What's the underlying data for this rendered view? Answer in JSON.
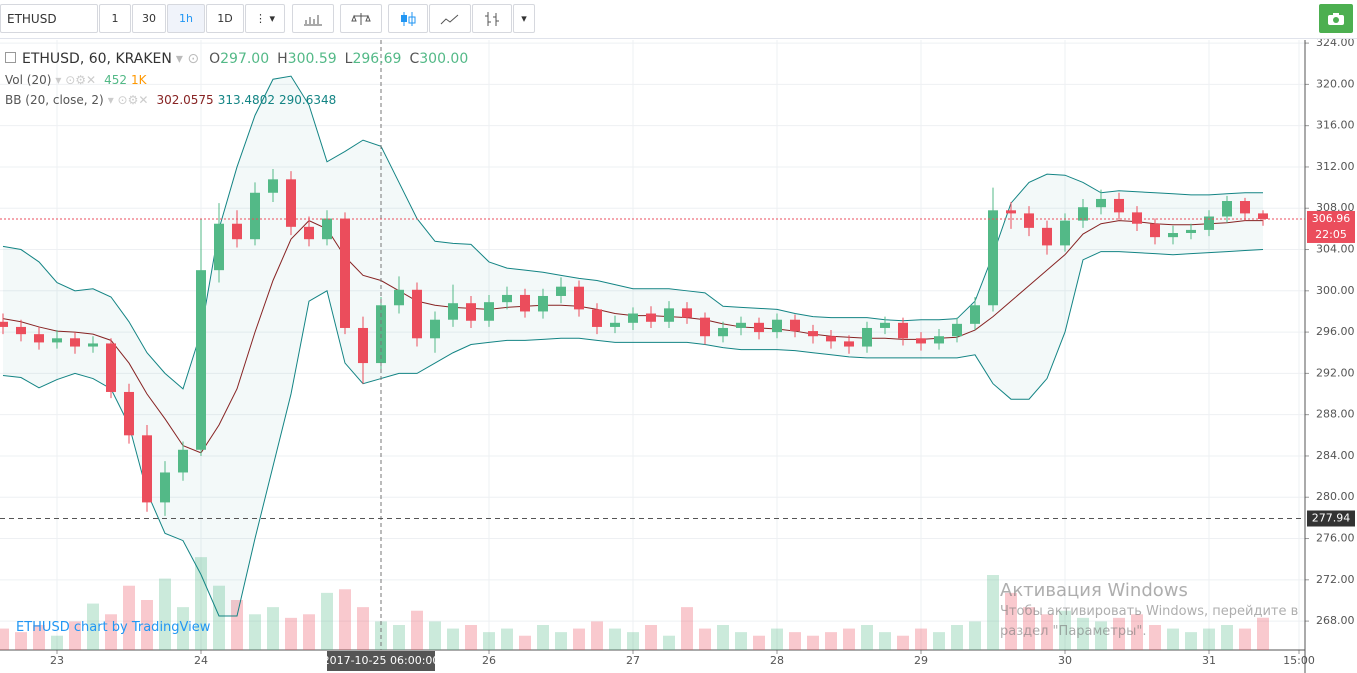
{
  "toolbar": {
    "symbol": "ETHUSD",
    "intervals": [
      "1",
      "30",
      "1h",
      "1D"
    ]
  },
  "legend": {
    "title": "ETHUSD, 60, KRAKEN",
    "ohlc": [
      {
        "key": "O",
        "text": "297.00"
      },
      {
        "key": "H",
        "text": "300.59"
      },
      {
        "key": "L",
        "text": "296.69"
      },
      {
        "key": "C",
        "text": "300.00"
      }
    ],
    "vol": {
      "name": "Vol (20)",
      "last": "452",
      "ma": "1K"
    },
    "bb": {
      "name": "BB (20, close, 2)",
      "basis": "302.0575",
      "upper": "313.4802",
      "lower": "290.6348"
    }
  },
  "watermark": "ETHUSD chart by TradingView",
  "windows_notice": {
    "title": "Активация Windows",
    "lines": [
      "Чтобы активировать Windows, перейдите в",
      "раздел \"Параметры\"."
    ]
  },
  "chart_data": {
    "type": "candlestick",
    "x": [
      -9,
      -6,
      -3,
      0,
      3,
      6,
      9,
      12,
      15,
      18,
      21,
      24,
      27,
      30,
      33,
      36,
      39,
      42,
      45,
      48,
      51,
      54,
      57,
      60,
      63,
      66,
      69,
      72,
      75,
      78,
      81,
      84,
      87,
      90,
      93,
      96,
      99,
      102,
      105,
      108,
      111,
      114,
      117,
      120,
      123,
      126,
      129,
      132,
      135,
      138,
      141,
      144,
      147,
      150,
      153,
      156,
      159,
      162,
      165,
      168,
      171,
      174,
      177,
      180,
      183,
      186,
      189,
      192,
      195,
      198,
      201
    ],
    "open": [
      297.0,
      296.5,
      295.8,
      295.0,
      295.4,
      294.6,
      294.9,
      290.2,
      286.0,
      279.5,
      282.4,
      284.6,
      302.0,
      306.5,
      305.0,
      309.5,
      310.8,
      306.2,
      305.0,
      307.0,
      296.4,
      293.0,
      298.6,
      300.1,
      295.4,
      297.2,
      298.8,
      297.1,
      298.9,
      299.6,
      298.0,
      299.5,
      300.4,
      298.2,
      296.5,
      296.9,
      297.8,
      297.0,
      298.3,
      297.4,
      295.6,
      296.4,
      296.9,
      296.0,
      297.2,
      296.1,
      295.6,
      295.1,
      294.6,
      296.4,
      296.9,
      295.4,
      294.9,
      295.6,
      296.8,
      298.6,
      307.8,
      307.5,
      306.1,
      304.4,
      306.8,
      308.1,
      308.9,
      307.6,
      306.5,
      305.2,
      305.6,
      305.9,
      307.2,
      308.7,
      307.5
    ],
    "high": [
      297.8,
      297.2,
      296.5,
      296.2,
      296.0,
      295.6,
      295.4,
      291.0,
      287.0,
      283.5,
      285.4,
      307.0,
      308.5,
      307.8,
      310.5,
      311.8,
      311.6,
      307.2,
      307.8,
      307.6,
      297.5,
      299.4,
      301.4,
      300.8,
      298.0,
      300.6,
      299.5,
      299.6,
      300.4,
      300.2,
      300.2,
      301.3,
      301.0,
      298.8,
      297.6,
      298.4,
      298.5,
      299.0,
      298.9,
      297.9,
      297.0,
      297.5,
      297.4,
      297.8,
      297.7,
      296.7,
      296.2,
      295.7,
      297.0,
      297.5,
      297.4,
      296.0,
      296.3,
      297.4,
      299.4,
      310.0,
      308.6,
      308.2,
      306.8,
      307.5,
      308.9,
      309.8,
      309.5,
      308.2,
      307.0,
      306.3,
      306.5,
      307.8,
      309.2,
      309.0,
      307.8
    ],
    "low": [
      295.8,
      295.1,
      294.3,
      294.4,
      293.9,
      294.0,
      289.6,
      285.2,
      278.6,
      278.2,
      281.6,
      284.0,
      300.8,
      304.2,
      304.4,
      308.6,
      305.4,
      304.3,
      304.4,
      295.8,
      291.0,
      292.4,
      297.8,
      294.6,
      294.0,
      296.5,
      296.4,
      296.5,
      298.2,
      297.4,
      297.3,
      298.8,
      297.5,
      295.8,
      295.9,
      296.2,
      296.4,
      296.4,
      296.8,
      294.8,
      295.0,
      295.7,
      295.3,
      295.4,
      295.5,
      294.9,
      294.4,
      293.9,
      294.0,
      295.8,
      294.7,
      294.2,
      294.3,
      295.0,
      296.2,
      298.0,
      306.0,
      305.3,
      303.5,
      303.8,
      306.1,
      307.4,
      306.9,
      305.8,
      304.5,
      304.5,
      305.0,
      305.3,
      306.6,
      306.8,
      306.3
    ],
    "close": [
      296.5,
      295.8,
      295.0,
      295.4,
      294.6,
      294.9,
      290.2,
      286.0,
      279.5,
      282.4,
      284.6,
      302.0,
      306.5,
      305.0,
      309.5,
      310.8,
      306.2,
      305.0,
      307.0,
      296.4,
      293.0,
      298.6,
      300.1,
      295.4,
      297.2,
      298.8,
      297.1,
      298.9,
      299.6,
      298.0,
      299.5,
      300.4,
      298.2,
      296.5,
      296.9,
      297.8,
      297.0,
      298.3,
      297.4,
      295.6,
      296.4,
      296.9,
      296.0,
      297.2,
      296.1,
      295.6,
      295.1,
      294.6,
      296.4,
      296.9,
      295.4,
      294.9,
      295.6,
      296.8,
      298.6,
      307.8,
      307.5,
      306.1,
      304.4,
      306.8,
      308.1,
      308.9,
      307.6,
      306.5,
      305.2,
      305.6,
      305.9,
      307.2,
      308.7,
      307.5,
      306.96
    ],
    "volume": [
      300,
      250,
      350,
      200,
      400,
      650,
      500,
      900,
      700,
      1000,
      600,
      1300,
      900,
      700,
      500,
      600,
      450,
      500,
      800,
      850,
      600,
      400,
      350,
      550,
      400,
      300,
      350,
      250,
      300,
      200,
      350,
      250,
      300,
      400,
      300,
      250,
      350,
      200,
      600,
      300,
      350,
      250,
      200,
      300,
      250,
      200,
      250,
      300,
      350,
      250,
      200,
      300,
      250,
      350,
      400,
      1050,
      800,
      600,
      500,
      550,
      450,
      400,
      450,
      500,
      350,
      300,
      250,
      300,
      350,
      300,
      452
    ],
    "volume_lim": [
      0,
      1400
    ],
    "bb": {
      "upper": [
        304.3,
        304.0,
        302.8,
        300.8,
        300.0,
        300.2,
        299.4,
        297.0,
        294.0,
        292.0,
        290.5,
        296.0,
        306.0,
        312.0,
        317.0,
        320.5,
        320.8,
        318.0,
        312.5,
        313.5,
        314.6,
        314.0,
        310.5,
        307.0,
        304.8,
        304.6,
        304.5,
        302.8,
        302.2,
        302.0,
        301.8,
        301.5,
        301.2,
        301.0,
        300.6,
        300.2,
        300.2,
        300.2,
        300.0,
        299.8,
        298.5,
        298.4,
        298.3,
        298.2,
        297.8,
        297.5,
        297.4,
        297.4,
        297.4,
        297.2,
        297.1,
        297.2,
        297.2,
        297.3,
        299.0,
        303.5,
        308.5,
        310.5,
        311.3,
        311.2,
        310.5,
        309.5,
        309.7,
        309.6,
        309.5,
        309.4,
        309.3,
        309.3,
        309.4,
        309.5,
        309.5
      ],
      "middle": [
        297.3,
        297.0,
        296.5,
        296.1,
        296.0,
        295.8,
        295.2,
        293.0,
        290.0,
        287.6,
        285.0,
        284.3,
        287.0,
        290.5,
        296.0,
        301.0,
        305.0,
        306.8,
        306.0,
        303.3,
        301.5,
        301.0,
        300.0,
        299.0,
        298.6,
        298.4,
        298.3,
        298.2,
        298.4,
        298.5,
        298.6,
        298.6,
        298.5,
        298.2,
        297.8,
        297.6,
        297.6,
        297.5,
        297.4,
        297.2,
        296.8,
        296.5,
        296.4,
        296.3,
        296.1,
        295.8,
        295.6,
        295.5,
        295.4,
        295.4,
        295.3,
        295.3,
        295.4,
        295.5,
        296.2,
        297.5,
        299.0,
        300.5,
        302.0,
        303.5,
        305.5,
        306.5,
        306.8,
        306.7,
        306.5,
        306.4,
        306.4,
        306.5,
        306.6,
        306.8,
        306.8
      ],
      "lower": [
        291.8,
        291.6,
        290.6,
        291.4,
        292.0,
        291.5,
        290.5,
        287.0,
        280.5,
        276.5,
        275.8,
        272.5,
        268.5,
        268.5,
        276.0,
        283.0,
        290.0,
        299.0,
        300.0,
        293.0,
        291.0,
        291.5,
        292.0,
        292.0,
        293.0,
        294.0,
        294.8,
        295.0,
        295.2,
        295.2,
        295.3,
        295.4,
        295.4,
        295.2,
        295.0,
        295.0,
        295.0,
        295.0,
        295.0,
        294.8,
        294.5,
        294.3,
        294.3,
        294.3,
        294.2,
        294.0,
        293.8,
        293.6,
        293.5,
        293.5,
        293.5,
        293.5,
        293.5,
        293.5,
        293.8,
        291.0,
        289.5,
        289.5,
        291.5,
        296.0,
        303.0,
        303.8,
        303.8,
        303.7,
        303.6,
        303.5,
        303.6,
        303.7,
        303.8,
        303.9,
        304.0
      ]
    },
    "xlim": [
      -9.5,
      208
    ],
    "xticks": [
      {
        "value": 0,
        "label": "23"
      },
      {
        "value": 24,
        "label": "24"
      },
      {
        "value": 72,
        "label": "26"
      },
      {
        "value": 96,
        "label": "27"
      },
      {
        "value": 120,
        "label": "28"
      },
      {
        "value": 144,
        "label": "29"
      },
      {
        "value": 168,
        "label": "30"
      },
      {
        "value": 192,
        "label": "31"
      },
      {
        "value": 207,
        "label": "15:00"
      }
    ],
    "crosshair": {
      "value": 54,
      "label": "2017-10-25 06:00:00"
    },
    "ylim": [
      265.2,
      324.3
    ],
    "yticks": [
      {
        "value": 268,
        "label": "268.00"
      },
      {
        "value": 272,
        "label": "272.00"
      },
      {
        "value": 276,
        "label": "276.00"
      },
      {
        "value": 280,
        "label": "280.00"
      },
      {
        "value": 284,
        "label": "284.00"
      },
      {
        "value": 288,
        "label": "288.00"
      },
      {
        "value": 292,
        "label": "292.00"
      },
      {
        "value": 296,
        "label": "296.00"
      },
      {
        "value": 300,
        "label": "300.00"
      },
      {
        "value": 304,
        "label": "304.00"
      },
      {
        "value": 308,
        "label": "308.00"
      },
      {
        "value": 312,
        "label": "312.00"
      },
      {
        "value": 316,
        "label": "316.00"
      },
      {
        "value": 320,
        "label": "320.00"
      },
      {
        "value": 324,
        "label": "324.00"
      }
    ],
    "price_line": {
      "value": 306.96,
      "countdown": "22:05"
    },
    "low_line": 277.94,
    "grid": true,
    "up_color": "#53b987",
    "down_color": "#eb4d5c",
    "bb_color": "#138484",
    "bb_mid_color": "#872323"
  }
}
